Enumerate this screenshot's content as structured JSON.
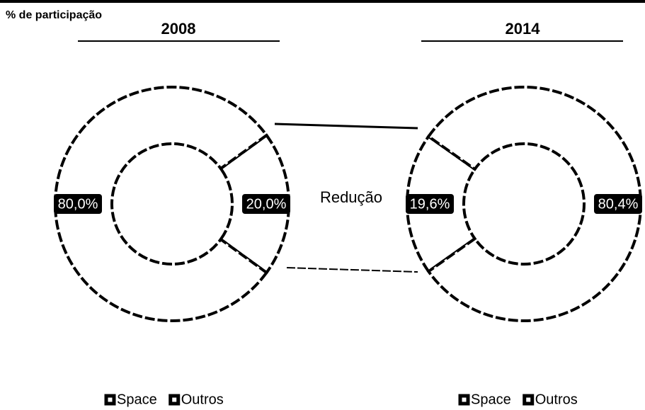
{
  "caption": "% de participação",
  "annotation": "Redução",
  "chart_data": [
    {
      "type": "donut",
      "title": "2008",
      "categories": [
        "Space",
        "Outros"
      ],
      "values": [
        20.0,
        80.0
      ],
      "value_labels": [
        "20,0%",
        "80,0%"
      ],
      "colors": [
        "#ffffff",
        "#ffffff"
      ],
      "legend": "bottom"
    },
    {
      "type": "donut",
      "title": "2014",
      "categories": [
        "Space",
        "Outros"
      ],
      "values": [
        19.6,
        80.4
      ],
      "value_labels": [
        "19,6%",
        "80,4%"
      ],
      "colors": [
        "#ffffff",
        "#ffffff"
      ],
      "legend": "bottom"
    }
  ]
}
